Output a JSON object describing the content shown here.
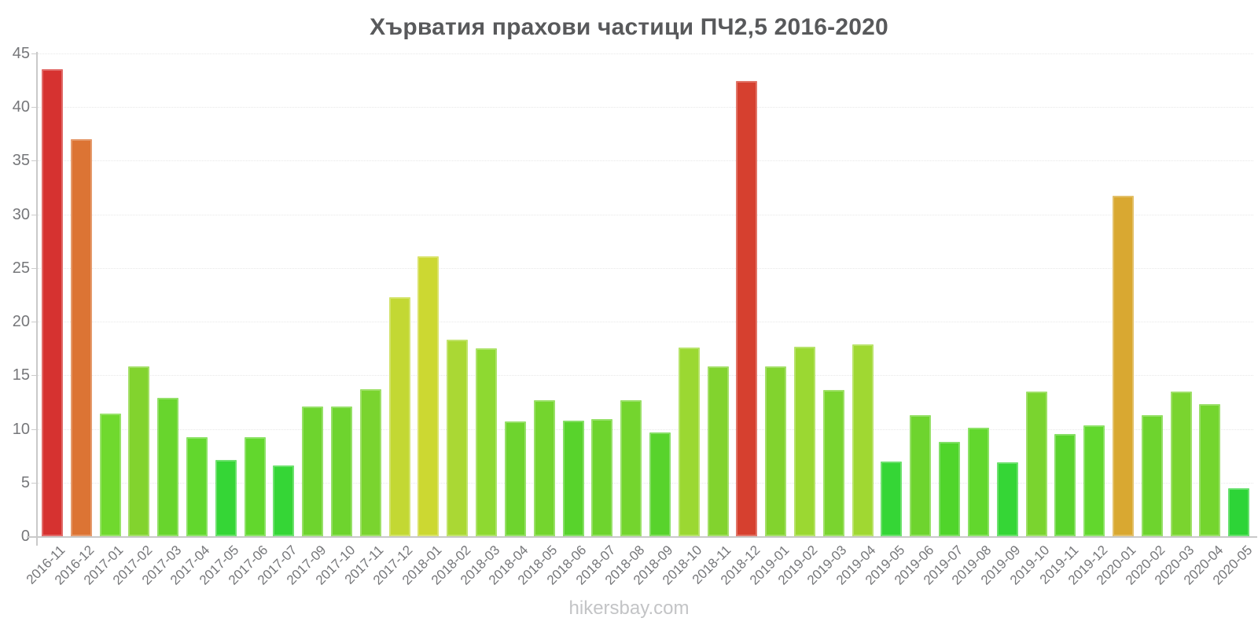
{
  "title": "Хърватия прахови частици ПЧ2,5 2016-2020",
  "footer": "hikersbay.com",
  "colors": {
    "background": "#ffffff",
    "title_text": "#58595b",
    "axis_line": "#c9c9c9",
    "tick_label": "#76777a",
    "footer_text": "#c3c4c6",
    "level_red": "#d63230",
    "level_orange": "#dc7434",
    "level_ochre": "#d9a831",
    "level_yellow_green": "#ccd832",
    "level_green": "#35d636"
  },
  "chart_data": {
    "type": "bar",
    "title": "Хърватия прахови частици ПЧ2,5 2016-2020",
    "xlabel": "",
    "ylabel": "",
    "ylim": [
      0,
      45
    ],
    "yticks": [
      0,
      5,
      10,
      15,
      20,
      25,
      30,
      35,
      40,
      45
    ],
    "grid": "faint dotted horizontal",
    "legend": "none",
    "categories": [
      "2016-11",
      "2016-12",
      "2017-01",
      "2017-02",
      "2017-03",
      "2017-04",
      "2017-05",
      "2017-06",
      "2017-07",
      "2017-09",
      "2017-10",
      "2017-11",
      "2017-12",
      "2018-01",
      "2018-02",
      "2018-03",
      "2018-04",
      "2018-05",
      "2018-06",
      "2018-07",
      "2018-08",
      "2018-09",
      "2018-10",
      "2018-11",
      "2018-12",
      "2019-01",
      "2019-02",
      "2019-03",
      "2019-04",
      "2019-05",
      "2019-06",
      "2019-07",
      "2019-08",
      "2019-09",
      "2019-10",
      "2019-11",
      "2019-12",
      "2020-01",
      "2020-02",
      "2020-03",
      "2020-04",
      "2020-05"
    ],
    "values": [
      43.5,
      37.0,
      11.4,
      15.8,
      12.9,
      9.2,
      7.1,
      9.2,
      6.6,
      12.1,
      12.1,
      13.7,
      22.3,
      26.1,
      18.3,
      17.5,
      10.7,
      12.7,
      10.8,
      10.9,
      12.7,
      9.7,
      17.6,
      15.8,
      42.4,
      15.8,
      17.7,
      13.6,
      17.9,
      7.0,
      11.3,
      8.8,
      10.1,
      6.9,
      13.5,
      9.5,
      10.3,
      31.7,
      11.3,
      13.5,
      12.3,
      4.5
    ],
    "bar_colors": [
      "#d63230",
      "#dc7434",
      "#70d92e",
      "#82d32e",
      "#68d52d",
      "#62d72d",
      "#35d636",
      "#62d72d",
      "#35d636",
      "#6ed42e",
      "#6ed42e",
      "#7ad42f",
      "#c3d833",
      "#ccd832",
      "#aad834",
      "#8ed931",
      "#6ed42e",
      "#74d52e",
      "#58d32c",
      "#6ed42e",
      "#74d52e",
      "#58d32c",
      "#9bd832",
      "#82d32e",
      "#d6402f",
      "#82d32e",
      "#9bd832",
      "#7ad42f",
      "#a0d832",
      "#35d636",
      "#6ed42e",
      "#50d52b",
      "#62d72d",
      "#35d636",
      "#7ad42f",
      "#5ad32c",
      "#62d72d",
      "#d9a831",
      "#6ed42e",
      "#7ad42f",
      "#74d52e",
      "#2dd437"
    ]
  }
}
